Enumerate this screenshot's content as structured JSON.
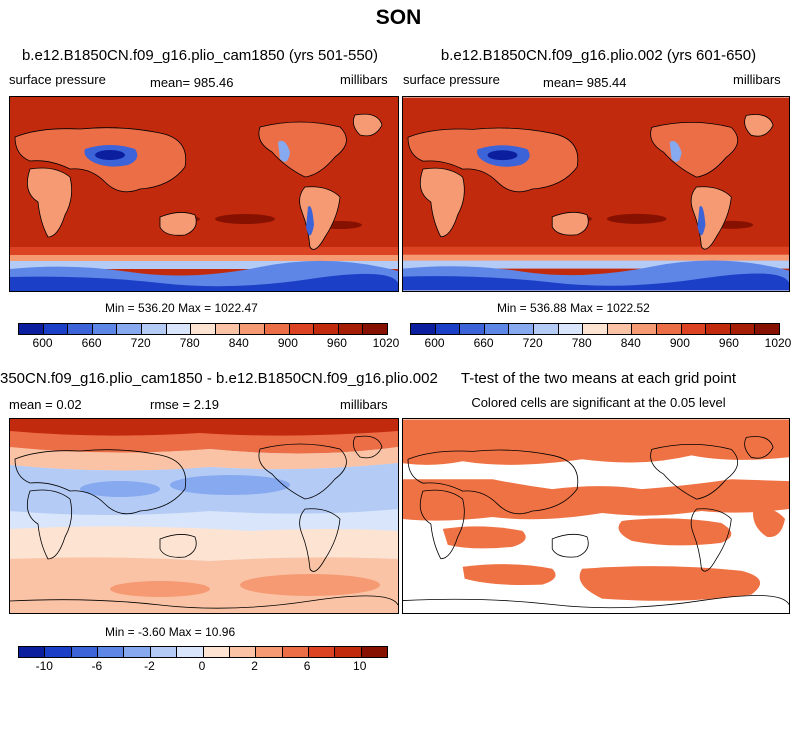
{
  "figure_title": "SON",
  "chart_data": [
    {
      "type": "heatmap",
      "panel": "top-left",
      "title": "b.e12.B1850CN.f09_g16.plio_cam1850 (yrs 501-550)",
      "variable": "surface pressure",
      "mean_label": "mean=",
      "mean": "985.46",
      "units": "millibars",
      "min_label": "Min =",
      "min": "536.20",
      "max_label": "Max =",
      "max": "1022.47",
      "colorbar_ticks": [
        "600",
        "660",
        "720",
        "780",
        "840",
        "900",
        "960",
        "1020"
      ]
    },
    {
      "type": "heatmap",
      "panel": "top-right",
      "title": "b.e12.B1850CN.f09_g16.plio.002 (yrs 601-650)",
      "variable": "surface pressure",
      "mean_label": "mean=",
      "mean": "985.44",
      "units": "millibars",
      "min_label": "Min =",
      "min": "536.88",
      "max_label": "Max =",
      "max": "1022.52",
      "colorbar_ticks": [
        "600",
        "660",
        "720",
        "780",
        "840",
        "900",
        "960",
        "1020"
      ]
    },
    {
      "type": "heatmap",
      "panel": "bottom-left",
      "title": "350CN.f09_g16.plio_cam1850 - b.e12.B1850CN.f09_g16.plio.002",
      "mean_label": "mean =",
      "mean": "0.02",
      "rmse_label": "rmse =",
      "rmse": "2.19",
      "units": "millibars",
      "min_label": "Min =",
      "min": "-3.60",
      "max_label": "Max =",
      "max": "10.96",
      "colorbar_ticks": [
        "-10",
        "-6",
        "-2",
        "0",
        "2",
        "6",
        "10"
      ]
    },
    {
      "type": "heatmap",
      "panel": "bottom-right",
      "title": "T-test of the two means at each grid point",
      "subtitle": "Colored cells are significant at the 0.05 level"
    }
  ],
  "colors": {
    "pressure_scale": [
      "#0b1f9e",
      "#1c3fc7",
      "#3d63d8",
      "#5d86e6",
      "#86a9f0",
      "#b4cbf6",
      "#d8e5fa",
      "#fde3d2",
      "#fac3a5",
      "#f59a72",
      "#ec6e47",
      "#dc4322",
      "#c22a0d",
      "#a51d05",
      "#861100"
    ],
    "diff_scale": [
      "#0b1f9e",
      "#1c3fc7",
      "#3d63d8",
      "#5d86e6",
      "#86a9f0",
      "#b4cbf6",
      "#d8e5fa",
      "#fde3d2",
      "#fac3a5",
      "#f59a72",
      "#ec6e47",
      "#dc4322",
      "#c22a0d",
      "#861100"
    ],
    "significant": "#ef7244",
    "land_outline": "#000000"
  }
}
